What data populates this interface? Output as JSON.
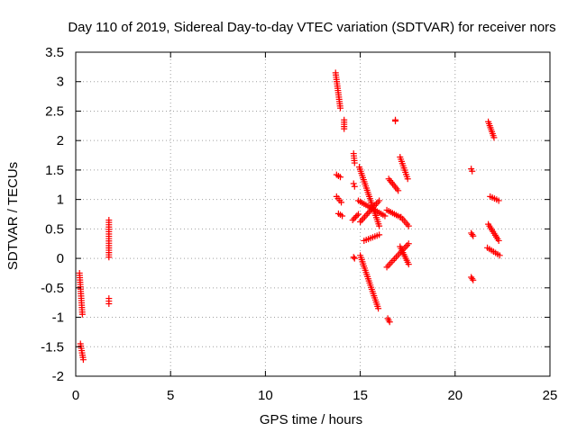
{
  "chart_data": {
    "type": "scatter",
    "title": "Day 110 of 2019, Sidereal Day-to-day VTEC variation (SDTVAR) for receiver nors",
    "xlabel": "GPS time / hours",
    "ylabel": "SDTVAR / TECUs",
    "xlim": [
      0,
      25
    ],
    "ylim": [
      -2,
      3.5
    ],
    "x_ticks": [
      0,
      5,
      10,
      15,
      20,
      25
    ],
    "x_tick_labels": [
      "0",
      "5",
      "10",
      "15",
      "20",
      "25"
    ],
    "y_ticks": [
      -2,
      -1.5,
      -1,
      -0.5,
      0,
      0.5,
      1,
      1.5,
      2,
      2.5,
      3,
      3.5
    ],
    "y_tick_labels": [
      "-2",
      "-1.5",
      "-1",
      "-0.5",
      "0",
      "0.5",
      "1",
      "1.5",
      "2",
      "2.5",
      "3",
      "3.5"
    ],
    "grid": true,
    "marker": "+",
    "color": "#ff0000",
    "segments": [
      {
        "name": "a",
        "x": [
          0.2,
          0.35
        ],
        "y": [
          -0.25,
          -0.95
        ]
      },
      {
        "name": "b",
        "x": [
          0.25,
          0.4
        ],
        "y": [
          -1.45,
          -1.72
        ]
      },
      {
        "name": "c",
        "x": [
          1.75,
          1.75
        ],
        "y": [
          0.65,
          0.02
        ]
      },
      {
        "name": "d",
        "x": [
          1.75,
          1.75
        ],
        "y": [
          -0.68,
          -0.77
        ]
      },
      {
        "name": "e",
        "x": [
          13.7,
          13.95
        ],
        "y": [
          3.15,
          2.55
        ]
      },
      {
        "name": "f",
        "x": [
          14.15,
          14.15
        ],
        "y": [
          2.35,
          2.2
        ]
      },
      {
        "name": "g",
        "x": [
          13.75,
          13.95
        ],
        "y": [
          1.42,
          1.38
        ]
      },
      {
        "name": "h",
        "x": [
          13.75,
          14.0
        ],
        "y": [
          1.05,
          0.95
        ]
      },
      {
        "name": "i",
        "x": [
          13.85,
          14.05
        ],
        "y": [
          0.76,
          0.72
        ]
      },
      {
        "name": "j",
        "x": [
          14.65,
          14.7
        ],
        "y": [
          1.78,
          1.62
        ]
      },
      {
        "name": "k",
        "x": [
          14.65,
          14.7
        ],
        "y": [
          1.27,
          1.22
        ]
      },
      {
        "name": "l",
        "x": [
          14.6,
          14.9
        ],
        "y": [
          0.65,
          0.75
        ]
      },
      {
        "name": "m",
        "x": [
          14.95,
          16.0
        ],
        "y": [
          1.55,
          0.55
        ]
      },
      {
        "name": "n",
        "x": [
          14.9,
          16.3
        ],
        "y": [
          0.98,
          0.72
        ]
      },
      {
        "name": "o",
        "x": [
          15.0,
          16.0
        ],
        "y": [
          0.62,
          0.98
        ]
      },
      {
        "name": "p",
        "x": [
          15.2,
          16.0
        ],
        "y": [
          0.3,
          0.4
        ]
      },
      {
        "name": "q",
        "x": [
          15.0,
          15.95
        ],
        "y": [
          0.05,
          -0.85
        ]
      },
      {
        "name": "r",
        "x": [
          14.65,
          14.7
        ],
        "y": [
          0.02,
          0.0
        ]
      },
      {
        "name": "s",
        "x": [
          16.45,
          16.55
        ],
        "y": [
          -1.02,
          -1.08
        ]
      },
      {
        "name": "t",
        "x": [
          16.4,
          17.1
        ],
        "y": [
          0.82,
          0.7
        ]
      },
      {
        "name": "u",
        "x": [
          16.4,
          17.55
        ],
        "y": [
          -0.15,
          0.25
        ]
      },
      {
        "name": "v",
        "x": [
          16.5,
          17.0
        ],
        "y": [
          1.35,
          1.15
        ]
      },
      {
        "name": "w",
        "x": [
          16.85,
          16.85
        ],
        "y": [
          2.35,
          2.33
        ]
      },
      {
        "name": "x",
        "x": [
          17.1,
          17.5
        ],
        "y": [
          1.72,
          1.35
        ]
      },
      {
        "name": "y",
        "x": [
          17.15,
          17.55
        ],
        "y": [
          0.7,
          0.55
        ]
      },
      {
        "name": "z",
        "x": [
          17.1,
          17.55
        ],
        "y": [
          0.2,
          -0.1
        ]
      },
      {
        "name": "aa",
        "x": [
          20.85,
          20.9
        ],
        "y": [
          1.52,
          1.48
        ]
      },
      {
        "name": "ab",
        "x": [
          20.85,
          20.95
        ],
        "y": [
          0.43,
          0.38
        ]
      },
      {
        "name": "ac",
        "x": [
          20.85,
          20.95
        ],
        "y": [
          -0.32,
          -0.37
        ]
      },
      {
        "name": "ad",
        "x": [
          21.75,
          22.05
        ],
        "y": [
          2.32,
          2.05
        ]
      },
      {
        "name": "ae",
        "x": [
          21.85,
          22.3
        ],
        "y": [
          1.05,
          0.98
        ]
      },
      {
        "name": "af",
        "x": [
          21.75,
          22.3
        ],
        "y": [
          0.58,
          0.3
        ]
      },
      {
        "name": "ag",
        "x": [
          21.7,
          22.35
        ],
        "y": [
          0.18,
          0.05
        ]
      }
    ]
  }
}
